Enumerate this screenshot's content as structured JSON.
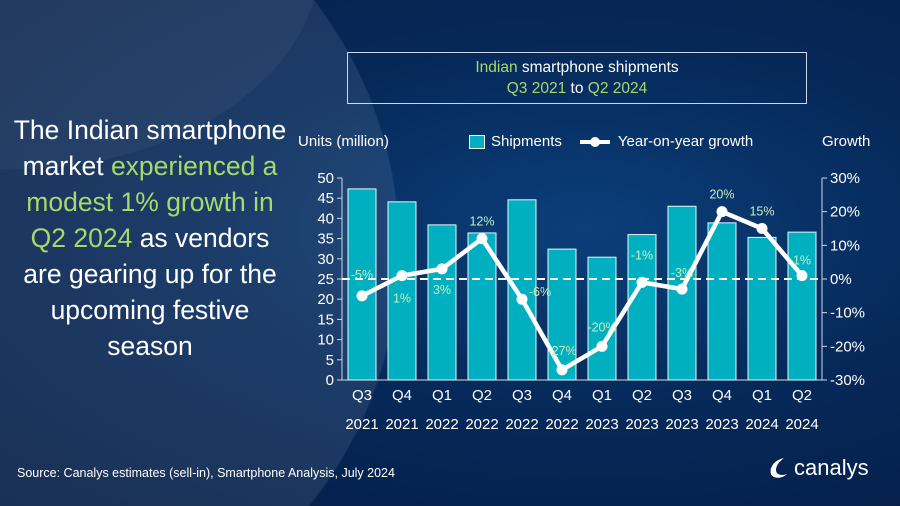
{
  "headline": {
    "part1": "The Indian smartphone market ",
    "highlight": "experienced a modest 1% growth in Q2 2024",
    "part2": " as vendors are gearing up for the upcoming festive season"
  },
  "title": {
    "line1_highlight": "Indian",
    "line1_rest": " smartphone shipments",
    "line2_a": "Q3 2021",
    "line2_to": " to ",
    "line2_b": "Q2 2024"
  },
  "source": "Source:  Canalys estimates (sell-in), Smartphone Analysis, July 2024",
  "logo": {
    "text": "canalys",
    "icon": "canalys-swoosh-icon"
  },
  "colors": {
    "bar": "#00b0c0",
    "line": "#ffffff",
    "label": "#c6eec0",
    "highlight": "#a6d96a"
  },
  "chart_data": {
    "type": "bar",
    "ylabel": "Units (million)",
    "y2label": "Growth",
    "ylim": [
      0,
      50
    ],
    "yticks": [
      0,
      5,
      10,
      15,
      20,
      25,
      30,
      35,
      40,
      45,
      50
    ],
    "y2lim": [
      -30,
      30
    ],
    "y2ticks": [
      "-30%",
      "-20%",
      "-10%",
      "0%",
      "10%",
      "20%",
      "30%"
    ],
    "legend_position": "top",
    "categories": [
      [
        "Q3",
        "2021"
      ],
      [
        "Q4",
        "2021"
      ],
      [
        "Q1",
        "2022"
      ],
      [
        "Q2",
        "2022"
      ],
      [
        "Q3",
        "2022"
      ],
      [
        "Q4",
        "2022"
      ],
      [
        "Q1",
        "2023"
      ],
      [
        "Q2",
        "2023"
      ],
      [
        "Q3",
        "2023"
      ],
      [
        "Q4",
        "2023"
      ],
      [
        "Q1",
        "2024"
      ],
      [
        "Q2",
        "2024"
      ]
    ],
    "series": [
      {
        "name": "Shipments",
        "type": "bar",
        "axis": "left",
        "values": [
          47.3,
          44.1,
          38.4,
          36.4,
          44.6,
          32.4,
          30.4,
          36.0,
          43.0,
          38.9,
          35.3,
          36.6
        ]
      },
      {
        "name": "Year-on-year growth",
        "type": "line",
        "axis": "right",
        "values": [
          -5,
          1,
          3,
          12,
          -6,
          -27,
          -20,
          -1,
          -3,
          20,
          15,
          1
        ],
        "labels": [
          "-5%",
          "1%",
          "3%",
          "12%",
          "-6%",
          "-27%",
          "-20%",
          "-1%",
          "-3%",
          "20%",
          "15%",
          "1%"
        ]
      }
    ]
  }
}
